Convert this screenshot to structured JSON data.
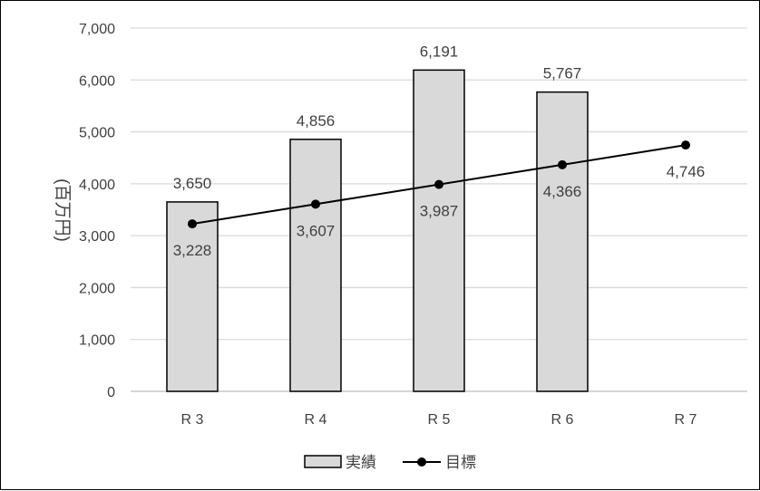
{
  "chart_data": {
    "type": "bar",
    "categories": [
      "R 3",
      "R 4",
      "R 5",
      "R 6",
      "R 7"
    ],
    "series": [
      {
        "name": "実績",
        "type": "bar",
        "values": [
          3650,
          4856,
          6191,
          5767,
          null
        ],
        "labels": [
          "3,650",
          "4,856",
          "6,191",
          "5,767",
          ""
        ],
        "color": "#d9d9d9"
      },
      {
        "name": "目標",
        "type": "line",
        "values": [
          3228,
          3607,
          3987,
          4366,
          4746
        ],
        "labels": [
          "3,228",
          "3,607",
          "3,987",
          "4,366",
          "4,746"
        ],
        "color": "#000000"
      }
    ],
    "ylabel": "(百万円)",
    "ylim": [
      0,
      7000
    ],
    "yticks": [
      0,
      1000,
      2000,
      3000,
      4000,
      5000,
      6000,
      7000
    ],
    "ytick_labels": [
      "0",
      "1,000",
      "2,000",
      "3,000",
      "4,000",
      "5,000",
      "6,000",
      "7,000"
    ],
    "grid": true,
    "legend": "bottom"
  }
}
